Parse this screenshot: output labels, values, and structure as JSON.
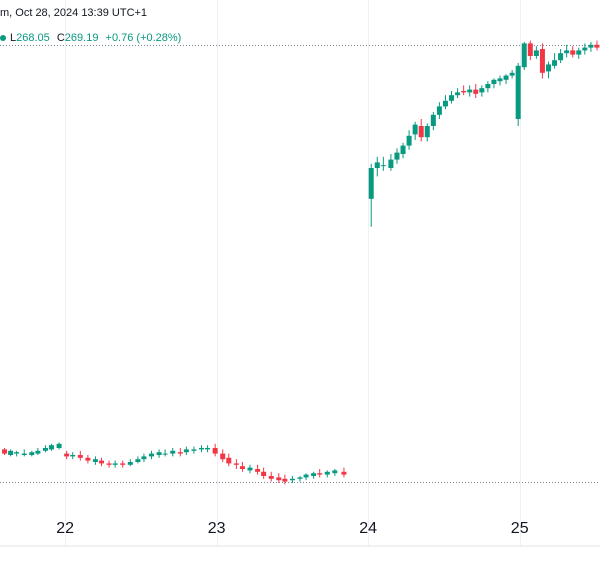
{
  "legend": {
    "header_fragment": "m, Oct 28, 2024 13:39 UTC+1",
    "low": "L268.05",
    "close": "C269.19",
    "change": "+0.76 (+0.28%)"
  },
  "colors": {
    "up": "#089981",
    "down": "#f23645",
    "grid": "#eef0f3",
    "dotted_line": "#758696",
    "background": "#ffffff",
    "text": "#131722"
  },
  "chart_data": {
    "type": "candlestick",
    "x_tick_labels": [
      "22",
      "23",
      "24",
      "25"
    ],
    "x_tick_days": [
      22,
      23,
      24,
      25
    ],
    "x_range": [
      21.57,
      25.53
    ],
    "y_range": [
      240.0,
      279.0
    ],
    "dotted_levels": [
      275.8,
      244.6
    ],
    "grid": true,
    "candles": [
      [
        21.6,
        246.9,
        247.0,
        246.6,
        246.5
      ],
      [
        21.64,
        246.5,
        246.9,
        246.8,
        246.4
      ],
      [
        21.68,
        246.6,
        246.8,
        246.7,
        246.4
      ],
      [
        21.73,
        246.5,
        246.9,
        246.6,
        246.4
      ],
      [
        21.78,
        246.5,
        246.8,
        246.7,
        246.4
      ],
      [
        21.82,
        246.6,
        247.0,
        246.8,
        246.5
      ],
      [
        21.87,
        246.8,
        247.2,
        247.0,
        246.7
      ],
      [
        21.91,
        246.9,
        247.3,
        247.2,
        246.8
      ],
      [
        21.96,
        247.0,
        247.4,
        247.3,
        246.9
      ],
      [
        22.01,
        246.6,
        246.8,
        246.4,
        246.2
      ],
      [
        22.05,
        246.4,
        246.7,
        246.5,
        246.2
      ],
      [
        22.1,
        246.5,
        246.8,
        246.3,
        246.1
      ],
      [
        22.15,
        246.3,
        246.5,
        246.1,
        245.9
      ],
      [
        22.2,
        246.0,
        246.4,
        246.2,
        245.8
      ],
      [
        22.24,
        246.1,
        246.3,
        245.9,
        245.7
      ],
      [
        22.29,
        245.9,
        246.1,
        245.8,
        245.6
      ],
      [
        22.33,
        245.8,
        246.1,
        245.9,
        245.6
      ],
      [
        22.38,
        245.9,
        246.1,
        245.8,
        245.6
      ],
      [
        22.43,
        245.8,
        246.2,
        246.0,
        245.7
      ],
      [
        22.48,
        246.0,
        246.4,
        246.2,
        245.9
      ],
      [
        22.52,
        246.2,
        246.6,
        246.4,
        246.0
      ],
      [
        22.57,
        246.4,
        246.8,
        246.6,
        246.2
      ],
      [
        22.62,
        246.5,
        246.9,
        246.7,
        246.3
      ],
      [
        22.66,
        246.6,
        246.9,
        246.6,
        246.4
      ],
      [
        22.71,
        246.6,
        247.0,
        246.8,
        246.4
      ],
      [
        22.76,
        246.7,
        247.0,
        246.6,
        246.4
      ],
      [
        22.8,
        246.7,
        247.1,
        246.9,
        246.5
      ],
      [
        22.85,
        246.8,
        247.1,
        246.9,
        246.6
      ],
      [
        22.9,
        246.9,
        247.2,
        247.0,
        246.7
      ],
      [
        22.94,
        246.9,
        247.2,
        247.0,
        246.7
      ],
      [
        22.99,
        247.0,
        247.3,
        246.6,
        246.4
      ],
      [
        23.04,
        246.6,
        246.9,
        246.2,
        246.0
      ],
      [
        23.08,
        246.3,
        246.6,
        245.9,
        245.7
      ],
      [
        23.13,
        245.9,
        246.2,
        245.8,
        245.5
      ],
      [
        23.17,
        245.7,
        246.0,
        245.5,
        245.3
      ],
      [
        23.22,
        245.4,
        245.8,
        245.6,
        245.2
      ],
      [
        23.27,
        245.5,
        245.8,
        245.3,
        245.1
      ],
      [
        23.31,
        245.3,
        245.6,
        245.0,
        244.8
      ],
      [
        23.36,
        245.0,
        245.3,
        244.8,
        244.6
      ],
      [
        23.41,
        244.9,
        245.2,
        244.7,
        244.5
      ],
      [
        23.45,
        244.8,
        245.1,
        244.6,
        244.4
      ],
      [
        23.5,
        244.7,
        245.0,
        244.8,
        244.5
      ],
      [
        23.55,
        244.8,
        245.0,
        244.9,
        244.6
      ],
      [
        23.59,
        244.9,
        245.2,
        245.1,
        244.7
      ],
      [
        23.64,
        245.0,
        245.3,
        245.2,
        244.8
      ],
      [
        23.68,
        245.2,
        245.5,
        245.1,
        244.9
      ],
      [
        23.73,
        245.1,
        245.4,
        245.3,
        244.9
      ],
      [
        23.78,
        245.2,
        245.5,
        245.4,
        245.0
      ],
      [
        23.84,
        245.3,
        245.6,
        245.1,
        244.9
      ],
      [
        24.02,
        264.8,
        267.3,
        267.0,
        262.8
      ],
      [
        24.06,
        267.0,
        267.8,
        267.4,
        266.4
      ],
      [
        24.1,
        267.2,
        267.8,
        267.2,
        266.8
      ],
      [
        24.15,
        267.0,
        268.0,
        267.6,
        266.8
      ],
      [
        24.19,
        267.6,
        268.4,
        268.1,
        267.3
      ],
      [
        24.23,
        268.0,
        268.8,
        268.6,
        267.7
      ],
      [
        24.27,
        268.6,
        269.7,
        269.3,
        268.3
      ],
      [
        24.31,
        269.4,
        270.3,
        270.1,
        269.0
      ],
      [
        24.35,
        270.0,
        270.5,
        269.2,
        268.9
      ],
      [
        24.39,
        269.2,
        270.2,
        270.0,
        268.9
      ],
      [
        24.43,
        270.0,
        271.0,
        270.8,
        269.7
      ],
      [
        24.47,
        270.8,
        271.7,
        271.4,
        270.5
      ],
      [
        24.51,
        271.4,
        272.2,
        271.8,
        271.2
      ],
      [
        24.55,
        271.8,
        272.5,
        272.2,
        271.6
      ],
      [
        24.59,
        272.2,
        272.7,
        272.4,
        272.0
      ],
      [
        24.63,
        272.5,
        272.9,
        272.4,
        272.2
      ],
      [
        24.67,
        272.4,
        272.9,
        272.6,
        272.1
      ],
      [
        24.71,
        272.6,
        273.0,
        272.3,
        272.0
      ],
      [
        24.75,
        272.4,
        272.9,
        272.7,
        272.1
      ],
      [
        24.79,
        272.7,
        273.2,
        273.0,
        272.4
      ],
      [
        24.83,
        273.0,
        273.4,
        273.3,
        272.7
      ],
      [
        24.87,
        273.2,
        273.6,
        273.4,
        272.9
      ],
      [
        24.91,
        273.3,
        273.7,
        273.6,
        273.0
      ],
      [
        24.95,
        273.6,
        274.0,
        273.8,
        273.4
      ],
      [
        24.99,
        270.5,
        274.5,
        274.3,
        270.0
      ],
      [
        25.03,
        274.2,
        276.0,
        275.9,
        274.0
      ],
      [
        25.07,
        275.9,
        276.1,
        275.0,
        274.7
      ],
      [
        25.11,
        275.0,
        275.7,
        275.4,
        274.8
      ],
      [
        25.15,
        275.5,
        275.9,
        273.8,
        273.4
      ],
      [
        25.19,
        273.9,
        274.6,
        274.4,
        273.4
      ],
      [
        25.23,
        274.3,
        275.2,
        274.7,
        274.1
      ],
      [
        25.27,
        274.7,
        275.5,
        275.2,
        274.5
      ],
      [
        25.31,
        275.2,
        275.8,
        275.4,
        274.9
      ],
      [
        25.35,
        275.4,
        275.7,
        275.1,
        274.9
      ],
      [
        25.39,
        275.1,
        275.6,
        275.4,
        274.8
      ],
      [
        25.43,
        275.4,
        275.9,
        275.6,
        275.1
      ],
      [
        25.47,
        275.6,
        276.0,
        275.8,
        275.3
      ],
      [
        25.51,
        275.8,
        276.1,
        275.6,
        275.4
      ]
    ]
  }
}
